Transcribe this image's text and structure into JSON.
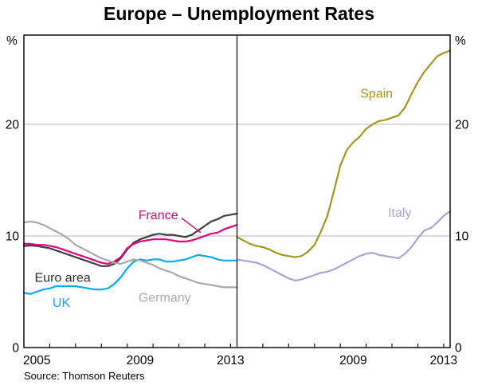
{
  "header": {
    "title": "Europe – Unemployment Rates"
  },
  "footer": {
    "source": "Source: Thomson Reuters"
  },
  "chart_data": {
    "type": "line",
    "title": "Europe – Unemployment Rates",
    "ylabel_left": "%",
    "ylabel_right": "%",
    "ylim": [
      0,
      28
    ],
    "yticks": [
      {
        "value": 0,
        "label": "0"
      },
      {
        "value": 10,
        "label": "10"
      },
      {
        "value": 20,
        "label": "20"
      }
    ],
    "gridlines": [
      10,
      20
    ],
    "xlim": [
      2005,
      2013.25
    ],
    "year_ticks": [
      2006,
      2007,
      2008,
      2009,
      2010,
      2011,
      2012,
      2013
    ],
    "legend_position": "inline-labels",
    "grid": true,
    "panels": [
      {
        "name": "western-europe",
        "xticks": [
          {
            "label": "2005",
            "year": 2005.5
          },
          {
            "label": "2009",
            "year": 2009.5
          },
          {
            "label": "2013",
            "year": 2013.0
          }
        ],
        "series": [
          {
            "name": "Euro area",
            "color": "#3f3f3f",
            "points": [
              [
                2005.0,
                9.1
              ],
              [
                2005.25,
                9.15
              ],
              [
                2005.5,
                9.1
              ],
              [
                2005.75,
                9.0
              ],
              [
                2006.0,
                8.9
              ],
              [
                2006.25,
                8.7
              ],
              [
                2006.5,
                8.5
              ],
              [
                2006.75,
                8.3
              ],
              [
                2007.0,
                8.1
              ],
              [
                2007.25,
                7.9
              ],
              [
                2007.5,
                7.7
              ],
              [
                2007.75,
                7.5
              ],
              [
                2008.0,
                7.3
              ],
              [
                2008.25,
                7.3
              ],
              [
                2008.5,
                7.5
              ],
              [
                2008.75,
                8.0
              ],
              [
                2009.0,
                8.8
              ],
              [
                2009.25,
                9.4
              ],
              [
                2009.5,
                9.7
              ],
              [
                2009.75,
                9.9
              ],
              [
                2010.0,
                10.1
              ],
              [
                2010.25,
                10.2
              ],
              [
                2010.5,
                10.1
              ],
              [
                2010.75,
                10.1
              ],
              [
                2011.0,
                10.0
              ],
              [
                2011.25,
                9.9
              ],
              [
                2011.5,
                10.1
              ],
              [
                2011.75,
                10.5
              ],
              [
                2012.0,
                10.9
              ],
              [
                2012.25,
                11.3
              ],
              [
                2012.5,
                11.5
              ],
              [
                2012.75,
                11.8
              ],
              [
                2013.0,
                11.9
              ],
              [
                2013.25,
                12.0
              ]
            ]
          },
          {
            "name": "France",
            "color": "#e6007e",
            "points": [
              [
                2005.0,
                9.3
              ],
              [
                2005.25,
                9.3
              ],
              [
                2005.5,
                9.2
              ],
              [
                2005.75,
                9.2
              ],
              [
                2006.0,
                9.1
              ],
              [
                2006.25,
                9.0
              ],
              [
                2006.5,
                8.8
              ],
              [
                2006.75,
                8.6
              ],
              [
                2007.0,
                8.4
              ],
              [
                2007.25,
                8.2
              ],
              [
                2007.5,
                8.0
              ],
              [
                2007.75,
                7.8
              ],
              [
                2008.0,
                7.6
              ],
              [
                2008.25,
                7.5
              ],
              [
                2008.5,
                7.7
              ],
              [
                2008.75,
                8.1
              ],
              [
                2009.0,
                8.9
              ],
              [
                2009.25,
                9.3
              ],
              [
                2009.5,
                9.5
              ],
              [
                2009.75,
                9.6
              ],
              [
                2010.0,
                9.7
              ],
              [
                2010.25,
                9.7
              ],
              [
                2010.5,
                9.7
              ],
              [
                2010.75,
                9.6
              ],
              [
                2011.0,
                9.5
              ],
              [
                2011.25,
                9.5
              ],
              [
                2011.5,
                9.6
              ],
              [
                2011.75,
                9.8
              ],
              [
                2012.0,
                10.0
              ],
              [
                2012.25,
                10.2
              ],
              [
                2012.5,
                10.3
              ],
              [
                2012.75,
                10.6
              ],
              [
                2013.0,
                10.8
              ],
              [
                2013.25,
                11.0
              ]
            ]
          },
          {
            "name": "UK",
            "color": "#00aeef",
            "points": [
              [
                2005.0,
                4.9
              ],
              [
                2005.25,
                4.8
              ],
              [
                2005.5,
                5.0
              ],
              [
                2005.75,
                5.2
              ],
              [
                2006.0,
                5.3
              ],
              [
                2006.25,
                5.5
              ],
              [
                2006.5,
                5.5
              ],
              [
                2006.75,
                5.5
              ],
              [
                2007.0,
                5.5
              ],
              [
                2007.25,
                5.4
              ],
              [
                2007.5,
                5.3
              ],
              [
                2007.75,
                5.2
              ],
              [
                2008.0,
                5.2
              ],
              [
                2008.25,
                5.3
              ],
              [
                2008.5,
                5.7
              ],
              [
                2008.75,
                6.3
              ],
              [
                2009.0,
                7.1
              ],
              [
                2009.25,
                7.7
              ],
              [
                2009.5,
                7.9
              ],
              [
                2009.75,
                7.8
              ],
              [
                2010.0,
                7.9
              ],
              [
                2010.25,
                7.9
              ],
              [
                2010.5,
                7.7
              ],
              [
                2010.75,
                7.7
              ],
              [
                2011.0,
                7.8
              ],
              [
                2011.25,
                7.9
              ],
              [
                2011.5,
                8.1
              ],
              [
                2011.75,
                8.3
              ],
              [
                2012.0,
                8.2
              ],
              [
                2012.25,
                8.1
              ],
              [
                2012.5,
                7.9
              ],
              [
                2012.75,
                7.8
              ],
              [
                2013.0,
                7.8
              ],
              [
                2013.25,
                7.8
              ]
            ]
          },
          {
            "name": "Germany",
            "color": "#a9a9a9",
            "points": [
              [
                2005.0,
                11.2
              ],
              [
                2005.25,
                11.3
              ],
              [
                2005.5,
                11.2
              ],
              [
                2005.75,
                11.0
              ],
              [
                2006.0,
                10.7
              ],
              [
                2006.25,
                10.4
              ],
              [
                2006.5,
                10.1
              ],
              [
                2006.75,
                9.7
              ],
              [
                2007.0,
                9.2
              ],
              [
                2007.25,
                8.9
              ],
              [
                2007.5,
                8.6
              ],
              [
                2007.75,
                8.3
              ],
              [
                2008.0,
                8.0
              ],
              [
                2008.25,
                7.8
              ],
              [
                2008.5,
                7.6
              ],
              [
                2008.75,
                7.5
              ],
              [
                2009.0,
                7.7
              ],
              [
                2009.25,
                7.9
              ],
              [
                2009.5,
                7.8
              ],
              [
                2009.75,
                7.6
              ],
              [
                2010.0,
                7.4
              ],
              [
                2010.25,
                7.1
              ],
              [
                2010.5,
                6.9
              ],
              [
                2010.75,
                6.7
              ],
              [
                2011.0,
                6.4
              ],
              [
                2011.25,
                6.2
              ],
              [
                2011.5,
                6.0
              ],
              [
                2011.75,
                5.8
              ],
              [
                2012.0,
                5.7
              ],
              [
                2012.25,
                5.6
              ],
              [
                2012.5,
                5.5
              ],
              [
                2012.75,
                5.4
              ],
              [
                2013.0,
                5.4
              ],
              [
                2013.25,
                5.4
              ]
            ]
          }
        ],
        "labels": [
          {
            "text": "France",
            "color": "#e6007e",
            "year": 2010.2,
            "value": 11.9,
            "pointer": {
              "from": [
                2011.1,
                11.6
              ],
              "to": [
                2011.85,
                10.3
              ]
            }
          },
          {
            "text": "Euro area",
            "color": "#2b2b2b",
            "year": 2006.5,
            "value": 6.3
          },
          {
            "text": "UK",
            "color": "#00aeef",
            "year": 2006.45,
            "value": 4.05
          },
          {
            "text": "Germany",
            "color": "#a9a9a9",
            "year": 2010.45,
            "value": 4.5
          }
        ]
      },
      {
        "name": "southern-europe",
        "xticks": [
          {
            "label": "2009",
            "year": 2009.5
          },
          {
            "label": "2013",
            "year": 2013.0
          }
        ],
        "series": [
          {
            "name": "Spain",
            "color": "#a89520",
            "points": [
              [
                2005.0,
                9.9
              ],
              [
                2005.25,
                9.6
              ],
              [
                2005.5,
                9.3
              ],
              [
                2005.75,
                9.1
              ],
              [
                2006.0,
                9.0
              ],
              [
                2006.25,
                8.8
              ],
              [
                2006.5,
                8.5
              ],
              [
                2006.75,
                8.3
              ],
              [
                2007.0,
                8.2
              ],
              [
                2007.25,
                8.1
              ],
              [
                2007.5,
                8.2
              ],
              [
                2007.75,
                8.6
              ],
              [
                2008.0,
                9.2
              ],
              [
                2008.25,
                10.4
              ],
              [
                2008.5,
                11.8
              ],
              [
                2008.75,
                14.0
              ],
              [
                2009.0,
                16.3
              ],
              [
                2009.25,
                17.7
              ],
              [
                2009.5,
                18.4
              ],
              [
                2009.75,
                18.9
              ],
              [
                2010.0,
                19.6
              ],
              [
                2010.25,
                20.0
              ],
              [
                2010.5,
                20.3
              ],
              [
                2010.75,
                20.4
              ],
              [
                2011.0,
                20.6
              ],
              [
                2011.25,
                20.8
              ],
              [
                2011.5,
                21.5
              ],
              [
                2011.75,
                22.7
              ],
              [
                2012.0,
                23.8
              ],
              [
                2012.25,
                24.7
              ],
              [
                2012.5,
                25.4
              ],
              [
                2012.75,
                26.1
              ],
              [
                2013.0,
                26.4
              ],
              [
                2013.25,
                26.6
              ]
            ]
          },
          {
            "name": "Italy",
            "color": "#aba3d2",
            "points": [
              [
                2005.0,
                7.9
              ],
              [
                2005.25,
                7.8
              ],
              [
                2005.5,
                7.7
              ],
              [
                2005.75,
                7.6
              ],
              [
                2006.0,
                7.4
              ],
              [
                2006.25,
                7.1
              ],
              [
                2006.5,
                6.8
              ],
              [
                2006.75,
                6.5
              ],
              [
                2007.0,
                6.2
              ],
              [
                2007.25,
                6.0
              ],
              [
                2007.5,
                6.1
              ],
              [
                2007.75,
                6.3
              ],
              [
                2008.0,
                6.5
              ],
              [
                2008.25,
                6.7
              ],
              [
                2008.5,
                6.8
              ],
              [
                2008.75,
                7.0
              ],
              [
                2009.0,
                7.3
              ],
              [
                2009.25,
                7.6
              ],
              [
                2009.5,
                7.9
              ],
              [
                2009.75,
                8.2
              ],
              [
                2010.0,
                8.4
              ],
              [
                2010.25,
                8.5
              ],
              [
                2010.5,
                8.3
              ],
              [
                2010.75,
                8.2
              ],
              [
                2011.0,
                8.1
              ],
              [
                2011.25,
                8.0
              ],
              [
                2011.5,
                8.4
              ],
              [
                2011.75,
                9.0
              ],
              [
                2012.0,
                9.8
              ],
              [
                2012.25,
                10.5
              ],
              [
                2012.5,
                10.7
              ],
              [
                2012.75,
                11.2
              ],
              [
                2013.0,
                11.8
              ],
              [
                2013.25,
                12.2
              ]
            ]
          }
        ],
        "labels": [
          {
            "text": "Spain",
            "color": "#a89520",
            "year": 2010.4,
            "value": 22.8
          },
          {
            "text": "Italy",
            "color": "#aba3d2",
            "year": 2011.3,
            "value": 12.1
          }
        ]
      }
    ]
  }
}
